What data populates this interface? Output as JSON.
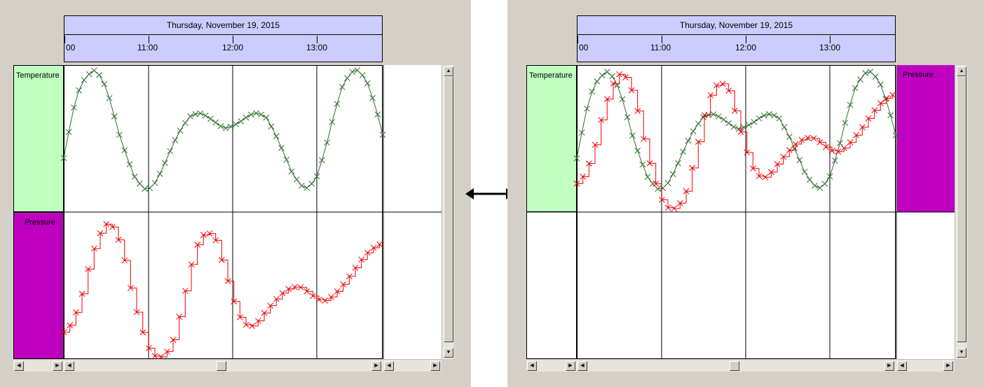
{
  "header": {
    "date_label": "Thursday, November 19, 2015",
    "ticks": [
      "00",
      "11:00",
      "12:00",
      "13:00"
    ]
  },
  "tracks": {
    "temperature": "Temperature",
    "pressure": "Pressure"
  },
  "colors": {
    "header_bg": "#ccccff",
    "temperature_track": "#c0ffc0",
    "pressure_track": "#c000c0",
    "temperature_series": "#2e6e2e",
    "pressure_series": "#ee0000",
    "window_bg": "#d4d0c8"
  },
  "icons": {
    "arrow_up": "▲",
    "arrow_down": "▼",
    "arrow_left": "◀",
    "arrow_right": "▶",
    "swap": "double-headed-arrow-icon"
  },
  "chart_data": [
    {
      "type": "line",
      "view": "separate tracks",
      "title": "Thursday, November 19, 2015",
      "x_ticks": [
        "00",
        "11:00",
        "12:00",
        "13:00"
      ],
      "series": [
        {
          "name": "Temperature",
          "color": "#2e6e2e",
          "marker": "x",
          "x": [
            0,
            0.05,
            0.15,
            0.25,
            0.35,
            0.45,
            0.55,
            0.65,
            0.75,
            0.85,
            0.95,
            1.0,
            1.1,
            1.2,
            1.3,
            1.4,
            1.5,
            1.6,
            1.7,
            1.8,
            1.9,
            2.0,
            2.1,
            2.2,
            2.3,
            2.4,
            2.5,
            2.6,
            2.7,
            2.8,
            2.9,
            3.0,
            3.1,
            3.2,
            3.3,
            3.4,
            3.5,
            3.6,
            3.7,
            3.78
          ],
          "y": [
            0.27,
            0.45,
            0.78,
            0.92,
            0.99,
            0.93,
            0.74,
            0.48,
            0.27,
            0.1,
            0.02,
            0.01,
            0.08,
            0.23,
            0.39,
            0.52,
            0.61,
            0.64,
            0.61,
            0.56,
            0.51,
            0.53,
            0.57,
            0.62,
            0.64,
            0.6,
            0.48,
            0.32,
            0.16,
            0.05,
            0.02,
            0.12,
            0.34,
            0.62,
            0.85,
            0.97,
            0.99,
            0.88,
            0.68,
            0.46
          ]
        },
        {
          "name": "Pressure",
          "color": "#ee0000",
          "marker": "x",
          "x": [
            0,
            0.1,
            0.2,
            0.3,
            0.4,
            0.5,
            0.6,
            0.7,
            0.8,
            0.9,
            1.0,
            1.1,
            1.2,
            1.3,
            1.4,
            1.5,
            1.6,
            1.7,
            1.8,
            1.9,
            2.0,
            2.1,
            2.2,
            2.3,
            2.4,
            2.5,
            2.6,
            2.7,
            2.8,
            2.9,
            3.0,
            3.1,
            3.2,
            3.3,
            3.4,
            3.5,
            3.6,
            3.7,
            3.78
          ],
          "y": [
            0.19,
            0.26,
            0.43,
            0.68,
            0.88,
            0.98,
            0.95,
            0.77,
            0.49,
            0.25,
            0.08,
            0.0,
            0.02,
            0.14,
            0.38,
            0.66,
            0.86,
            0.93,
            0.86,
            0.66,
            0.44,
            0.28,
            0.22,
            0.27,
            0.35,
            0.42,
            0.48,
            0.52,
            0.52,
            0.48,
            0.43,
            0.42,
            0.46,
            0.53,
            0.61,
            0.7,
            0.77,
            0.82,
            0.84
          ]
        }
      ]
    },
    {
      "type": "line",
      "view": "overlaid tracks",
      "title": "Thursday, November 19, 2015",
      "x_ticks": [
        "00",
        "11:00",
        "12:00",
        "13:00"
      ],
      "series": [
        {
          "name": "Temperature",
          "color": "#2e6e2e",
          "marker": "x"
        },
        {
          "name": "Pressure",
          "color": "#ee0000",
          "marker": "x"
        }
      ]
    }
  ]
}
